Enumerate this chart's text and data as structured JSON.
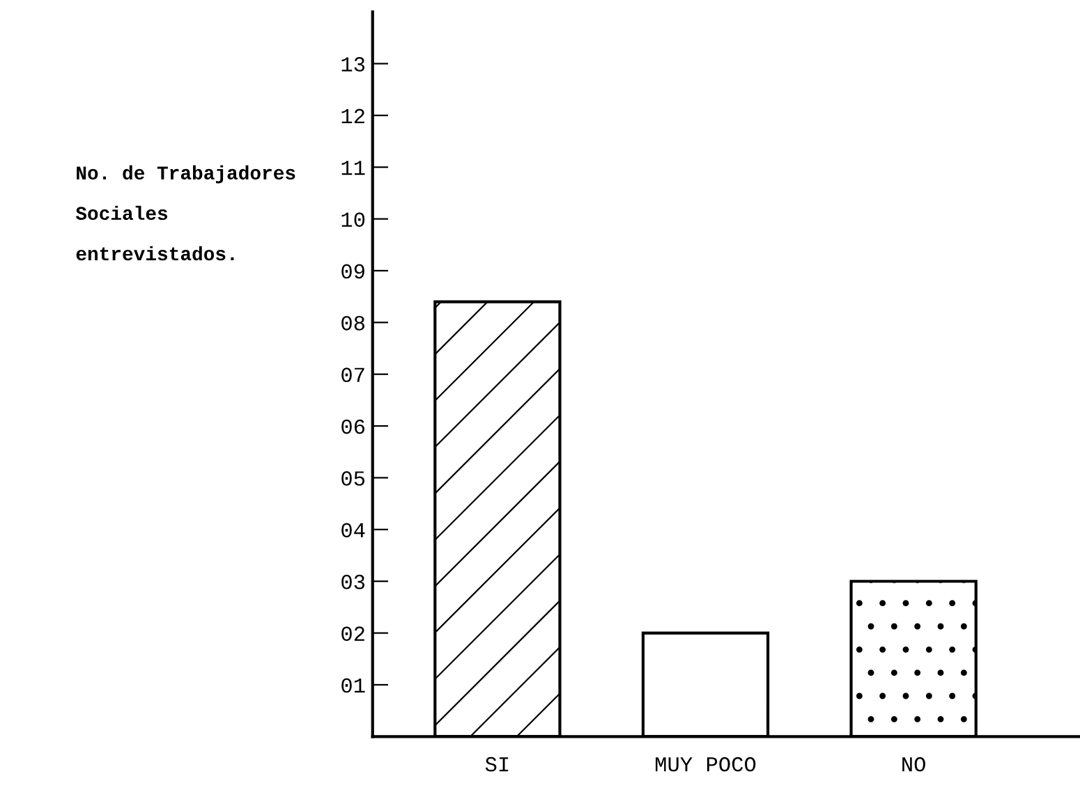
{
  "chart_data": {
    "type": "bar",
    "ylabel": "No. de Trabajadores\nSociales\nentrevistados.",
    "categories": [
      "SI",
      "MUY POCO",
      "NO"
    ],
    "values": [
      8.4,
      2,
      3
    ],
    "color": "#ffffff",
    "ylim": [
      0,
      14
    ],
    "yticks": [
      {
        "value": 1,
        "label": "01"
      },
      {
        "value": 2,
        "label": "02"
      },
      {
        "value": 3,
        "label": "03"
      },
      {
        "value": 4,
        "label": "04"
      },
      {
        "value": 5,
        "label": "05"
      },
      {
        "value": 6,
        "label": "06"
      },
      {
        "value": 7,
        "label": "07"
      },
      {
        "value": 8,
        "label": "08"
      },
      {
        "value": 9,
        "label": "09"
      },
      {
        "value": 10,
        "label": "10"
      },
      {
        "value": 11,
        "label": "11"
      },
      {
        "value": 12,
        "label": "12"
      },
      {
        "value": 13,
        "label": "13"
      }
    ],
    "grid": false
  }
}
